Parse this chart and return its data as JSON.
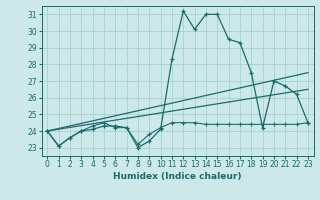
{
  "background_color": "#cce8e8",
  "grid_color": "#aad4d4",
  "line_color": "#1a6b6b",
  "xlabel": "Humidex (Indice chaleur)",
  "xlim": [
    -0.5,
    23.5
  ],
  "ylim": [
    22.5,
    31.5
  ],
  "yticks": [
    23,
    24,
    25,
    26,
    27,
    28,
    29,
    30,
    31
  ],
  "xticks": [
    0,
    1,
    2,
    3,
    4,
    5,
    6,
    7,
    8,
    9,
    10,
    11,
    12,
    13,
    14,
    15,
    16,
    17,
    18,
    19,
    20,
    21,
    22,
    23
  ],
  "series1_x": [
    0,
    1,
    2,
    3,
    4,
    5,
    6,
    7,
    8,
    9,
    10,
    11,
    12,
    13,
    14,
    15,
    16,
    17,
    18,
    19,
    20,
    21,
    22,
    23
  ],
  "series1_y": [
    24.0,
    23.1,
    23.6,
    24.0,
    24.1,
    24.3,
    24.3,
    24.2,
    23.0,
    23.4,
    24.1,
    28.3,
    31.2,
    30.1,
    31.0,
    31.0,
    29.5,
    29.3,
    27.5,
    24.2,
    27.0,
    26.7,
    26.2,
    24.5
  ],
  "series2_x": [
    0,
    1,
    2,
    3,
    4,
    5,
    6,
    7,
    8,
    9,
    10,
    11,
    12,
    13,
    14,
    15,
    16,
    17,
    18,
    19,
    20,
    21,
    22,
    23
  ],
  "series2_y": [
    24.0,
    23.1,
    23.6,
    24.0,
    24.3,
    24.5,
    24.2,
    24.2,
    23.2,
    23.8,
    24.2,
    24.5,
    24.5,
    24.5,
    24.4,
    24.4,
    24.4,
    24.4,
    24.4,
    24.4,
    24.4,
    24.4,
    24.4,
    24.5
  ],
  "series3_x": [
    0,
    23
  ],
  "series3_y": [
    24.0,
    27.5
  ],
  "series4_x": [
    0,
    23
  ],
  "series4_y": [
    24.0,
    26.5
  ]
}
